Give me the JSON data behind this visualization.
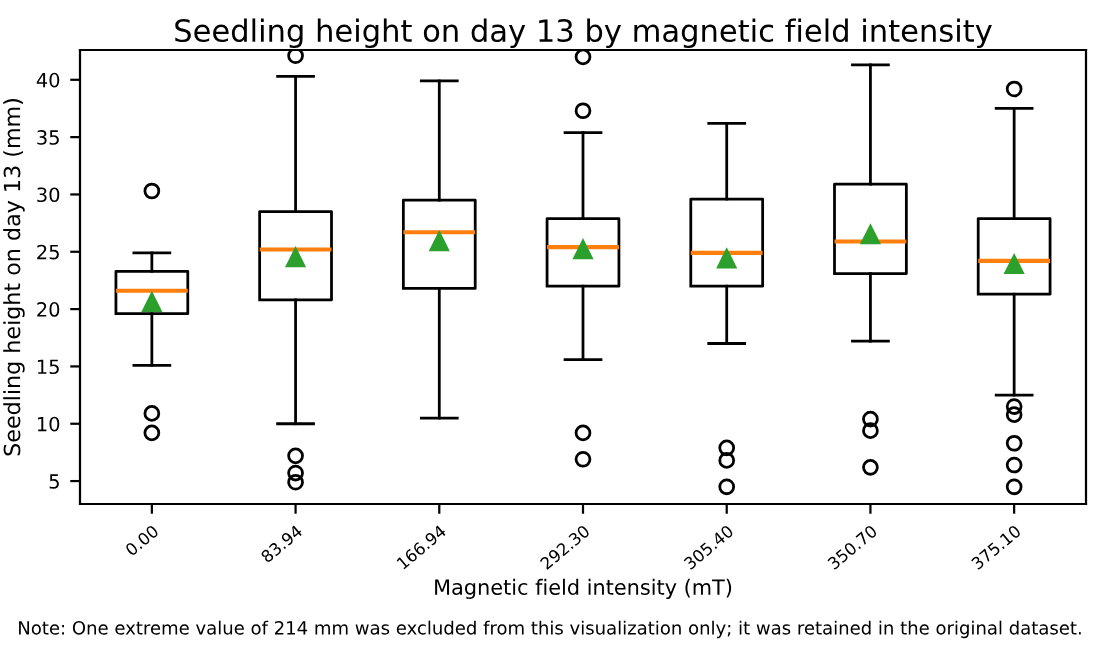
{
  "chart_data": {
    "type": "box",
    "title": "Seedling height on day 13 by magnetic field intensity",
    "xlabel": "Magnetic field intensity (mT)",
    "ylabel": "Seedling height on day 13 (mm)",
    "categories": [
      "0.00",
      "83.94",
      "166.94",
      "292.30",
      "305.40",
      "350.70",
      "375.10"
    ],
    "boxes": [
      {
        "low": 15.1,
        "q1": 19.6,
        "median": 21.6,
        "q3": 23.3,
        "high": 24.9,
        "mean": 20.6,
        "outliers": [
          30.3,
          10.9,
          9.2
        ]
      },
      {
        "low": 10.0,
        "q1": 20.8,
        "median": 25.2,
        "q3": 28.5,
        "high": 40.3,
        "mean": 24.5,
        "outliers": [
          42.1,
          7.2,
          5.7,
          4.9
        ]
      },
      {
        "low": 10.5,
        "q1": 21.8,
        "median": 26.7,
        "q3": 29.5,
        "high": 39.9,
        "mean": 25.9
      },
      {
        "low": 15.6,
        "q1": 22.0,
        "median": 25.4,
        "q3": 27.9,
        "high": 35.4,
        "mean": 25.2,
        "outliers": [
          42.0,
          37.3,
          9.2,
          6.9
        ]
      },
      {
        "low": 17.0,
        "q1": 22.0,
        "median": 24.9,
        "q3": 29.6,
        "high": 36.2,
        "mean": 24.4,
        "outliers": [
          7.9,
          6.8,
          4.5
        ]
      },
      {
        "low": 17.2,
        "q1": 23.1,
        "median": 25.9,
        "q3": 30.9,
        "high": 41.3,
        "mean": 26.5,
        "outliers": [
          10.4,
          9.4,
          6.2
        ]
      },
      {
        "low": 12.5,
        "q1": 21.3,
        "median": 24.2,
        "q3": 27.9,
        "high": 37.5,
        "mean": 23.9,
        "outliers": [
          39.2,
          11.5,
          10.8,
          8.3,
          6.4,
          4.5
        ]
      }
    ],
    "ylim": [
      3,
      42.6
    ],
    "yticks": [
      5,
      10,
      15,
      20,
      25,
      30,
      35,
      40
    ],
    "grid": false,
    "annotations": [
      "Note: One extreme value of 214 mm was excluded from this visualization only; it was retained in the original dataset."
    ]
  }
}
